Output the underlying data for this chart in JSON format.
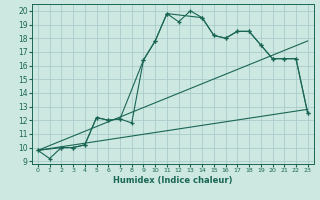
{
  "title": "",
  "xlabel": "Humidex (Indice chaleur)",
  "bg_color": "#cce8e0",
  "grid_color": "#aacccc",
  "line_color": "#1a6655",
  "xlim": [
    -0.5,
    23.5
  ],
  "ylim": [
    8.8,
    20.5
  ],
  "yticks": [
    9,
    10,
    11,
    12,
    13,
    14,
    15,
    16,
    17,
    18,
    19,
    20
  ],
  "xticks": [
    0,
    1,
    2,
    3,
    4,
    5,
    6,
    7,
    8,
    9,
    10,
    11,
    12,
    13,
    14,
    15,
    16,
    17,
    18,
    19,
    20,
    21,
    22,
    23
  ],
  "line1_x": [
    0,
    1,
    2,
    3,
    4,
    5,
    6,
    7,
    8,
    9,
    10,
    11,
    12,
    13,
    14,
    15,
    16,
    17,
    18,
    19,
    20,
    21,
    22,
    23
  ],
  "line1_y": [
    9.8,
    9.2,
    10.0,
    10.0,
    10.2,
    12.2,
    12.0,
    12.1,
    11.8,
    16.4,
    17.8,
    19.8,
    19.2,
    20.0,
    19.5,
    18.2,
    18.0,
    18.5,
    18.5,
    17.5,
    16.5,
    16.5,
    16.5,
    12.5
  ],
  "line2_x": [
    0,
    2,
    3,
    4,
    5,
    6,
    7,
    9,
    10,
    11,
    14,
    15,
    16,
    17,
    18,
    19,
    20,
    21,
    22,
    23
  ],
  "line2_y": [
    9.8,
    10.0,
    10.0,
    10.2,
    12.2,
    12.0,
    12.1,
    16.4,
    17.8,
    19.8,
    19.5,
    18.2,
    18.0,
    18.5,
    18.5,
    17.5,
    16.5,
    16.5,
    16.5,
    12.5
  ],
  "line3_x": [
    0,
    23
  ],
  "line3_y": [
    9.8,
    12.8
  ],
  "line4_x": [
    0,
    23
  ],
  "line4_y": [
    9.8,
    17.8
  ]
}
